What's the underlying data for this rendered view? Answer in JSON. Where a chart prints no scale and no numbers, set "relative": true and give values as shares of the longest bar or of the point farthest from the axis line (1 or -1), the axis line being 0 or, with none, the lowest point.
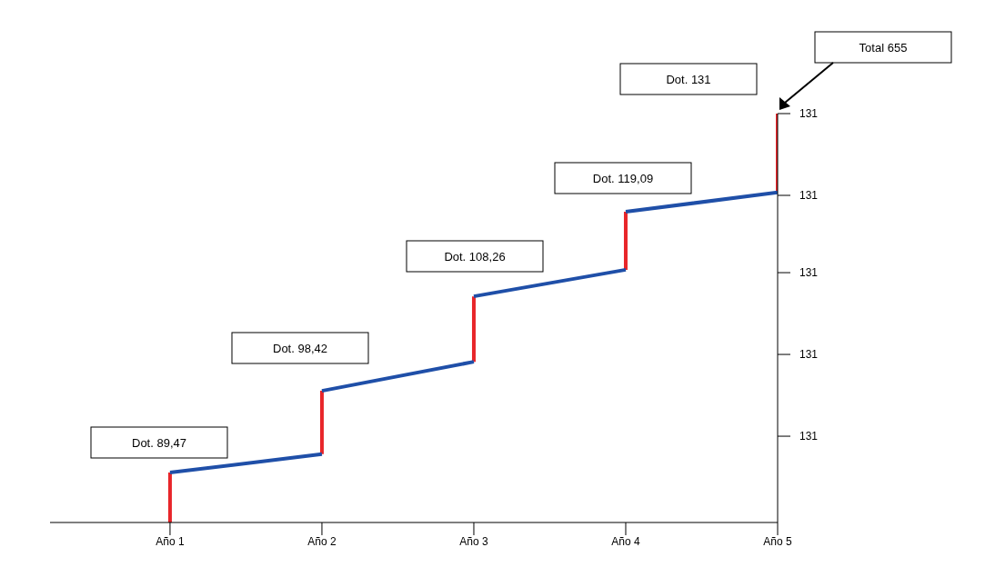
{
  "chart_data": {
    "type": "line",
    "relative": true,
    "categories": [
      "Año 1",
      "Año 2",
      "Año 3",
      "Año 4",
      "Año 5"
    ],
    "series": [
      {
        "color": "#e8262a",
        "x": [
          "Año 1",
          "Año 1",
          "Año 1",
          "Año 2",
          "Año 2",
          "Año 2",
          "Año 3",
          "Año 3",
          "Año 3",
          "Año 4",
          "Año 4",
          "Año 4",
          "Año 5",
          "Año 5"
        ],
        "values": [
          0,
          0.122,
          null,
          0.167,
          0.322,
          null,
          0.393,
          0.553,
          null,
          0.618,
          0.76,
          null,
          0.807,
          1
        ]
      },
      {
        "color": "#1f4fa8",
        "x": [
          "Año 1",
          "Año 2",
          "Año 2",
          "Año 2",
          "Año 3",
          "Año 3",
          "Año 3",
          "Año 4",
          "Año 4",
          "Año 4",
          "Año 5"
        ],
        "values": [
          0.122,
          0.167,
          null,
          0.322,
          0.393,
          null,
          0.553,
          0.618,
          null,
          0.76,
          0.807
        ]
      }
    ],
    "annotations": [
      "Dot. 89,47",
      "Dot. 98,42",
      "Dot. 108,26",
      "Dot. 119,09",
      "Dot. 131",
      "Total 655",
      "131",
      "131",
      "131",
      "131",
      "131"
    ],
    "grid": false,
    "legend": false,
    "marker": "none",
    "line_style": "solid"
  }
}
